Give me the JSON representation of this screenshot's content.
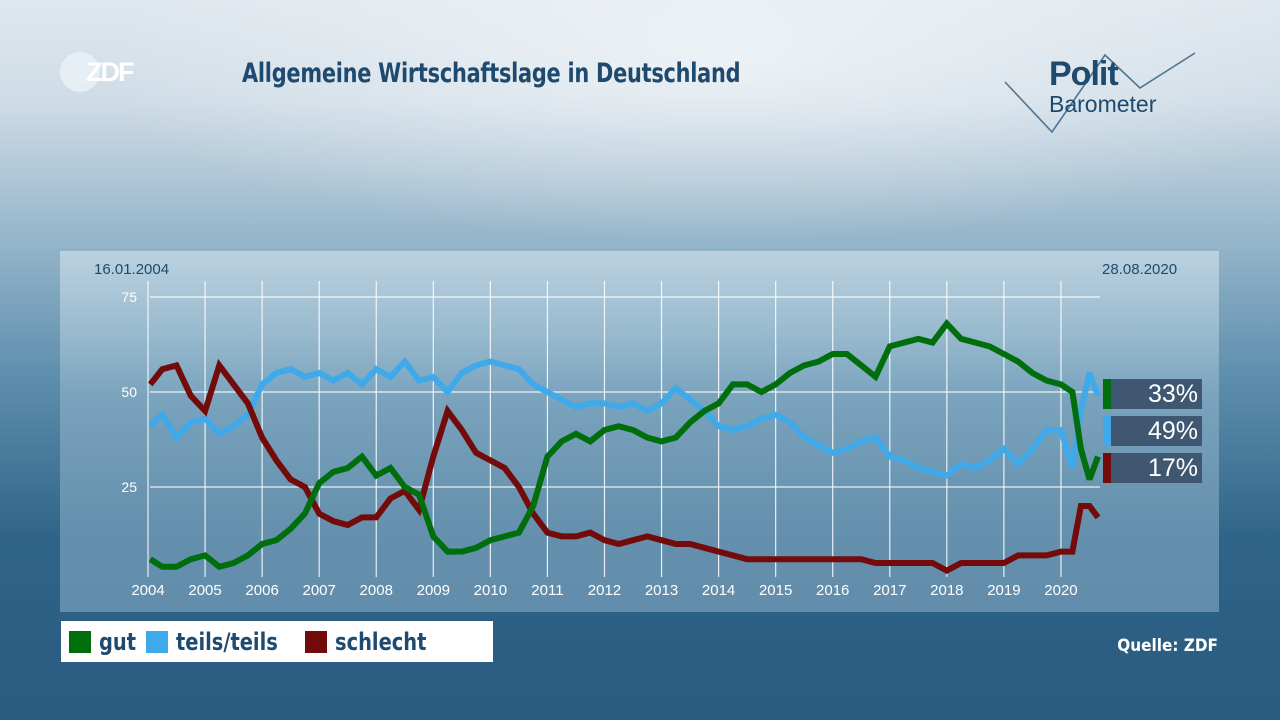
{
  "header": {
    "channel_logo": "ZDF",
    "title": "Allgemeine Wirtschaftslage in Deutschland",
    "brand_logo_line1": "Polit",
    "brand_logo_line2": "Barometer"
  },
  "footer": {
    "source": "Quelle: ZDF"
  },
  "colors": {
    "gut": "#006e0c",
    "teils": "#3fa9ea",
    "schlecht": "#730b0b",
    "title": "#1d4a6e",
    "badge_bg": "#3f5770"
  },
  "chart_data": {
    "type": "line",
    "title": "Allgemeine Wirtschaftslage in Deutschland",
    "start_date": "16.01.2004",
    "end_date": "28.08.2020",
    "xlabel": "",
    "ylabel": "",
    "xlim": [
      2004,
      2020.8
    ],
    "ylim": [
      0,
      75
    ],
    "y_ticks": [
      "75",
      "50",
      "25"
    ],
    "y_tick_values": [
      75,
      50,
      25
    ],
    "x_ticks": [
      "2004",
      "2005",
      "2006",
      "2007",
      "2008",
      "2009",
      "2010",
      "2011",
      "2012",
      "2013",
      "2014",
      "2015",
      "2016",
      "2017",
      "2018",
      "2019",
      "2020"
    ],
    "grid": true,
    "legend": {
      "position": "bottom-left",
      "entries": [
        "gut",
        "teils/teils",
        "schlecht"
      ]
    },
    "latest_values": [
      {
        "series": "gut",
        "label": "33%"
      },
      {
        "series": "teils/teils",
        "label": "49%"
      },
      {
        "series": "schlecht",
        "label": "17%"
      }
    ],
    "series": [
      {
        "name": "gut",
        "x": [
          2004.04,
          2004.25,
          2004.5,
          2004.75,
          2005.0,
          2005.25,
          2005.5,
          2005.75,
          2006.0,
          2006.25,
          2006.5,
          2006.75,
          2007.0,
          2007.25,
          2007.5,
          2007.75,
          2008.0,
          2008.25,
          2008.5,
          2008.75,
          2009.0,
          2009.25,
          2009.5,
          2009.75,
          2010.0,
          2010.25,
          2010.5,
          2010.75,
          2011.0,
          2011.25,
          2011.5,
          2011.75,
          2012.0,
          2012.25,
          2012.5,
          2012.75,
          2013.0,
          2013.25,
          2013.5,
          2013.75,
          2014.0,
          2014.25,
          2014.5,
          2014.75,
          2015.0,
          2015.25,
          2015.5,
          2015.75,
          2016.0,
          2016.25,
          2016.5,
          2016.75,
          2017.0,
          2017.25,
          2017.5,
          2017.75,
          2018.0,
          2018.25,
          2018.5,
          2018.75,
          2019.0,
          2019.25,
          2019.5,
          2019.75,
          2020.0,
          2020.2,
          2020.35,
          2020.5,
          2020.65
        ],
        "values": [
          6,
          4,
          4,
          6,
          7,
          4,
          5,
          7,
          10,
          11,
          14,
          18,
          26,
          29,
          30,
          33,
          28,
          30,
          25,
          23,
          12,
          8,
          8,
          9,
          11,
          12,
          13,
          20,
          33,
          37,
          39,
          37,
          40,
          41,
          40,
          38,
          37,
          38,
          42,
          45,
          47,
          52,
          52,
          50,
          52,
          55,
          57,
          58,
          60,
          60,
          57,
          54,
          62,
          63,
          64,
          63,
          68,
          64,
          63,
          62,
          60,
          58,
          55,
          53,
          52,
          50,
          35,
          27,
          33
        ]
      },
      {
        "name": "teils/teils",
        "x": [
          2004.04,
          2004.25,
          2004.5,
          2004.75,
          2005.0,
          2005.25,
          2005.5,
          2005.75,
          2006.0,
          2006.25,
          2006.5,
          2006.75,
          2007.0,
          2007.25,
          2007.5,
          2007.75,
          2008.0,
          2008.25,
          2008.5,
          2008.75,
          2009.0,
          2009.25,
          2009.5,
          2009.75,
          2010.0,
          2010.25,
          2010.5,
          2010.75,
          2011.0,
          2011.25,
          2011.5,
          2011.75,
          2012.0,
          2012.25,
          2012.5,
          2012.75,
          2013.0,
          2013.25,
          2013.5,
          2013.75,
          2014.0,
          2014.25,
          2014.5,
          2014.75,
          2015.0,
          2015.25,
          2015.5,
          2015.75,
          2016.0,
          2016.25,
          2016.5,
          2016.75,
          2017.0,
          2017.25,
          2017.5,
          2017.75,
          2018.0,
          2018.25,
          2018.5,
          2018.75,
          2019.0,
          2019.25,
          2019.5,
          2019.75,
          2020.0,
          2020.2,
          2020.35,
          2020.5,
          2020.65
        ],
        "values": [
          41,
          44,
          38,
          42,
          43,
          39,
          41,
          44,
          52,
          55,
          56,
          54,
          55,
          53,
          55,
          52,
          56,
          54,
          58,
          53,
          54,
          50,
          55,
          57,
          58,
          57,
          56,
          52,
          50,
          48,
          46,
          47,
          47,
          46,
          47,
          45,
          47,
          51,
          48,
          45,
          41,
          40,
          41,
          43,
          44,
          42,
          38,
          36,
          34,
          35,
          37,
          38,
          33,
          32,
          30,
          29,
          28,
          31,
          30,
          32,
          35,
          31,
          35,
          40,
          40,
          30,
          45,
          55,
          49
        ]
      },
      {
        "name": "schlecht",
        "x": [
          2004.04,
          2004.25,
          2004.5,
          2004.75,
          2005.0,
          2005.25,
          2005.5,
          2005.75,
          2006.0,
          2006.25,
          2006.5,
          2006.75,
          2007.0,
          2007.25,
          2007.5,
          2007.75,
          2008.0,
          2008.25,
          2008.5,
          2008.75,
          2009.0,
          2009.25,
          2009.5,
          2009.75,
          2010.0,
          2010.25,
          2010.5,
          2010.75,
          2011.0,
          2011.25,
          2011.5,
          2011.75,
          2012.0,
          2012.25,
          2012.5,
          2012.75,
          2013.0,
          2013.25,
          2013.5,
          2013.75,
          2014.0,
          2014.25,
          2014.5,
          2014.75,
          2015.0,
          2015.25,
          2015.5,
          2015.75,
          2016.0,
          2016.25,
          2016.5,
          2016.75,
          2017.0,
          2017.25,
          2017.5,
          2017.75,
          2018.0,
          2018.25,
          2018.5,
          2018.75,
          2019.0,
          2019.25,
          2019.5,
          2019.75,
          2020.0,
          2020.2,
          2020.35,
          2020.5,
          2020.65
        ],
        "values": [
          52,
          56,
          57,
          49,
          45,
          57,
          52,
          47,
          38,
          32,
          27,
          25,
          18,
          16,
          15,
          17,
          17,
          22,
          24,
          19,
          33,
          45,
          40,
          34,
          32,
          30,
          25,
          18,
          13,
          12,
          12,
          13,
          11,
          10,
          11,
          12,
          11,
          10,
          10,
          9,
          8,
          7,
          6,
          6,
          6,
          6,
          6,
          6,
          6,
          6,
          6,
          5,
          5,
          5,
          5,
          5,
          3,
          5,
          5,
          5,
          5,
          7,
          7,
          7,
          8,
          8,
          20,
          20,
          17
        ]
      }
    ]
  }
}
